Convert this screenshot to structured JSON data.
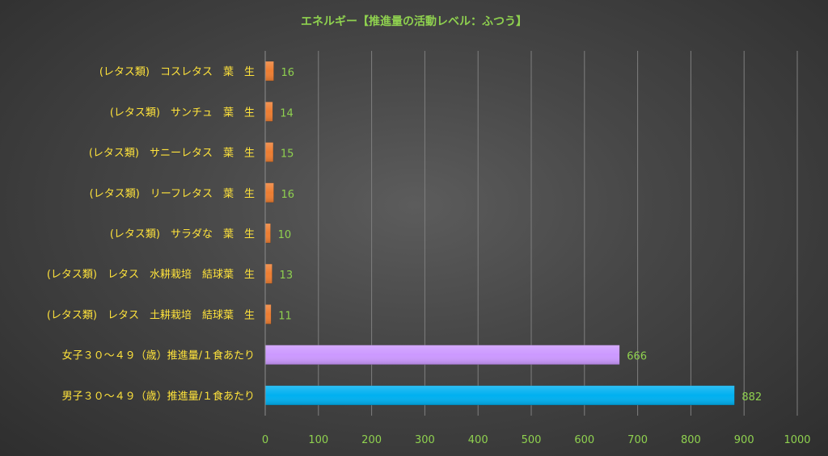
{
  "colors": {
    "title": "#8fd14f",
    "category_label": "#ffe33b",
    "value_label": "#8fd14f",
    "tick_label": "#8fd14f",
    "gridline": "#7f7f7f",
    "axis_line": "#8c8c8c"
  },
  "chart_data": {
    "type": "bar",
    "orientation": "horizontal",
    "title": "エネルギー【推進量の活動レベル：ふつう】",
    "xlabel": "",
    "ylabel": "",
    "xlim": [
      0,
      1000
    ],
    "x_ticks": [
      0,
      100,
      200,
      300,
      400,
      500,
      600,
      700,
      800,
      900,
      1000
    ],
    "grid": "vertical",
    "legend": "none",
    "categories": [
      "(レタス類)　コスレタス　葉　生",
      "(レタス類)　サンチュ　葉　生",
      "(レタス類)　サニーレタス　葉　生",
      "(レタス類)　リーフレタス　葉　生",
      "(レタス類)　サラダな　葉　生",
      "(レタス類)　レタス　水耕栽培　結球葉　生",
      "(レタス類)　レタス　土耕栽培　結球葉　生",
      "女子３０～４９（歳）推進量/１食あたり",
      "男子３０～４９（歳）推進量/１食あたり"
    ],
    "values": [
      16,
      14,
      15,
      16,
      10,
      13,
      11,
      666,
      882
    ],
    "value_labels": [
      "16",
      "14",
      "15",
      "16",
      "10",
      "13",
      "11",
      "666",
      "882"
    ],
    "bar_colors": [
      "#ed7d31",
      "#ed7d31",
      "#ed7d31",
      "#ed7d31",
      "#ed7d31",
      "#ed7d31",
      "#ed7d31",
      "#cc99ff",
      "#00b0f0"
    ]
  }
}
